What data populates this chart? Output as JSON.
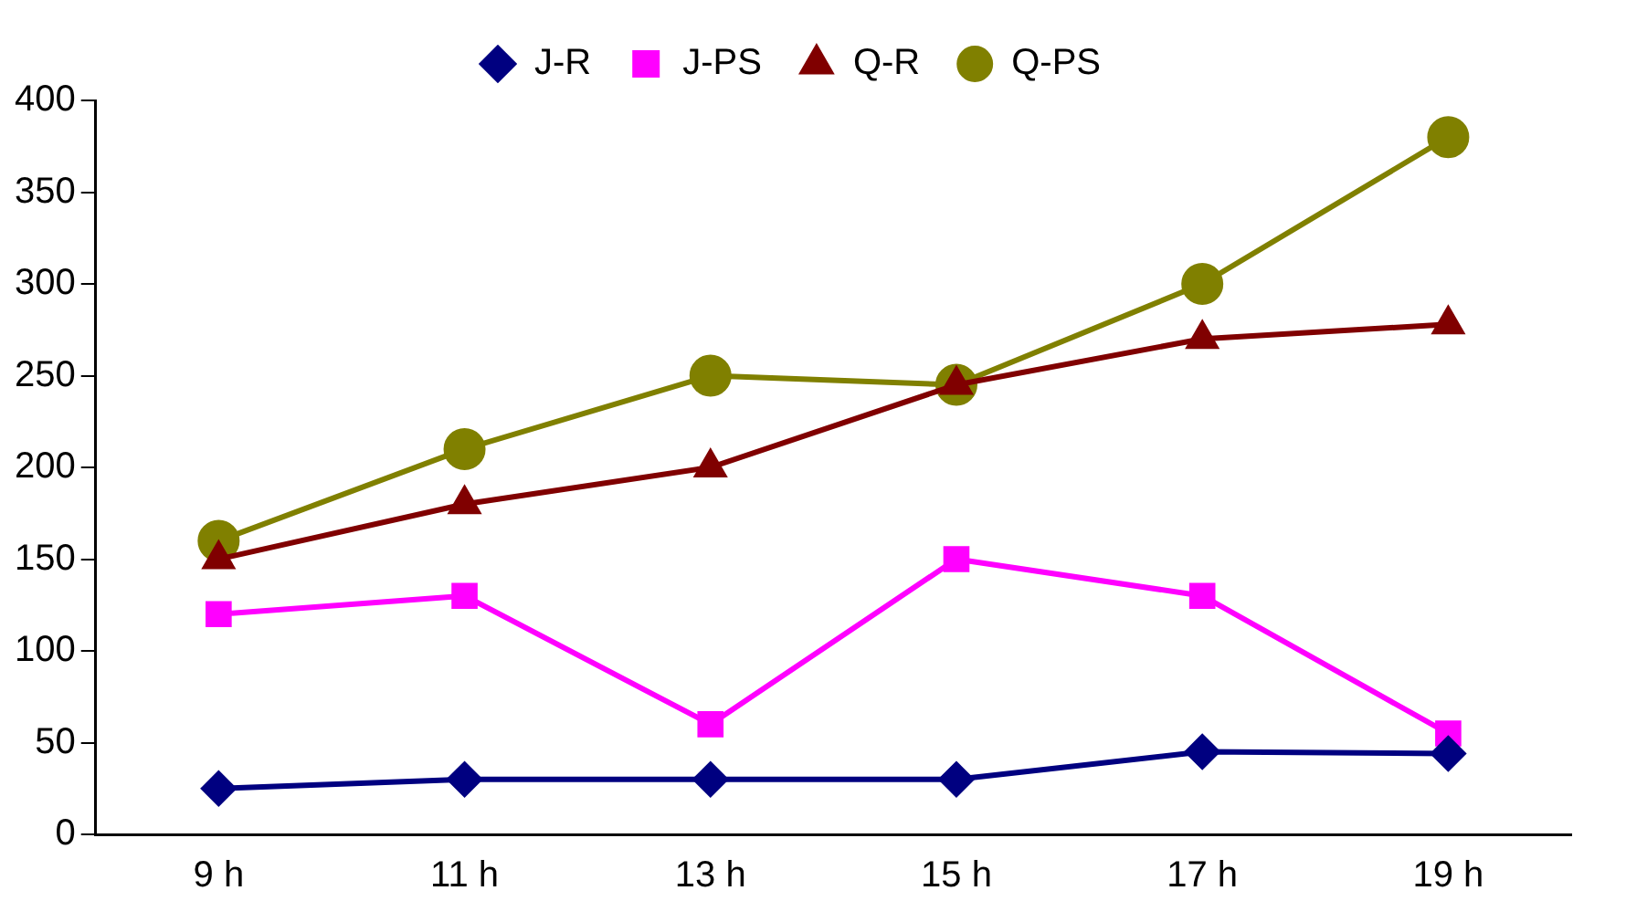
{
  "chart_data": {
    "type": "line",
    "categories": [
      "9 h",
      "11 h",
      "13 h",
      "15 h",
      "17 h",
      "19 h"
    ],
    "series": [
      {
        "name": "J-R",
        "color": "#000080",
        "marker": "diamond",
        "values": [
          25,
          30,
          30,
          30,
          45,
          44
        ]
      },
      {
        "name": "J-PS",
        "color": "#ff00ff",
        "marker": "square",
        "values": [
          120,
          130,
          60,
          150,
          130,
          55
        ]
      },
      {
        "name": "Q-R",
        "color": "#800000",
        "marker": "triangle",
        "values": [
          150,
          180,
          200,
          245,
          270,
          278
        ]
      },
      {
        "name": "Q-PS",
        "color": "#808000",
        "marker": "circle",
        "values": [
          160,
          210,
          250,
          245,
          300,
          380
        ]
      }
    ],
    "ylim": [
      0,
      400
    ],
    "yticks": [
      0,
      50,
      100,
      150,
      200,
      250,
      300,
      350,
      400
    ],
    "grid": false,
    "legend": "top"
  }
}
